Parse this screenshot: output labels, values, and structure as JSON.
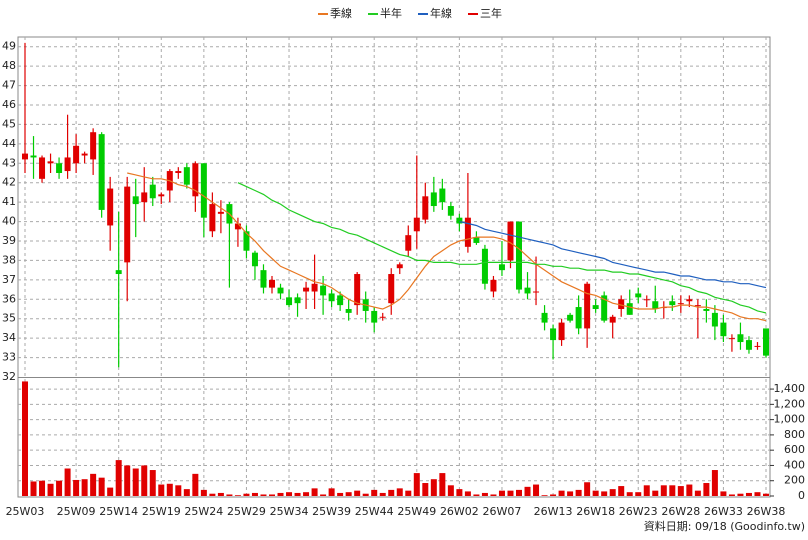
{
  "chart_data": {
    "type": "candlestick",
    "categories": [
      "25W03",
      null,
      null,
      null,
      null,
      null,
      "25W09",
      null,
      null,
      null,
      null,
      "25W14",
      null,
      null,
      null,
      null,
      "25W19",
      null,
      null,
      null,
      null,
      "25W24",
      null,
      null,
      null,
      null,
      "25W29",
      null,
      null,
      null,
      null,
      "25W34",
      null,
      null,
      null,
      null,
      "25W39",
      null,
      null,
      null,
      null,
      "25W44",
      null,
      null,
      null,
      null,
      "25W49",
      null,
      null,
      null,
      null,
      "26W02",
      null,
      null,
      null,
      null,
      "26W07",
      null,
      null,
      null,
      null,
      null,
      "26W13",
      null,
      null,
      null,
      null,
      "26W18",
      null,
      null,
      null,
      null,
      "26W23",
      null,
      null,
      null,
      null,
      "26W28",
      null,
      null,
      null,
      null,
      "26W33",
      null,
      null,
      null,
      null,
      "26W38"
    ],
    "open": [
      43.2,
      43.4,
      42.2,
      43,
      43,
      42.6,
      43,
      43.4,
      43.2,
      44.5,
      39.8,
      37.5,
      37.9,
      41.3,
      41,
      41.9,
      41.3,
      41.6,
      42.5,
      42.8,
      41.3,
      43,
      39.5,
      40.4,
      40.9,
      39.6,
      39.5,
      38.4,
      37.5,
      36.6,
      36.6,
      36.1,
      36.1,
      36.4,
      36.4,
      36.7,
      36.3,
      36.2,
      35.5,
      35.7,
      36,
      35.4,
      35.1,
      35.8,
      37.6,
      38.5,
      39.5,
      40.1,
      41.5,
      41.7,
      40.8,
      40.2,
      38.7,
      39.2,
      38.6,
      36.4,
      37.8,
      38,
      40,
      36.6,
      36.4,
      35.3,
      34.5,
      33.9,
      35.2,
      35.6,
      34.5,
      35.7,
      36.2,
      34.8,
      35.5,
      35.8,
      36.3,
      36,
      35.9,
      35.6,
      35.9,
      35.8,
      35.9,
      35.7,
      35.5,
      35.3,
      34.8,
      34,
      34.2,
      33.9,
      33.6,
      34.5
    ],
    "high": [
      49.2,
      44.4,
      43.4,
      43.5,
      43.3,
      45.5,
      44.5,
      43.6,
      44.8,
      44.6,
      42.3,
      40.5,
      42.3,
      42.2,
      42.8,
      42.3,
      41.5,
      42.7,
      42.8,
      43.0,
      43.1,
      43.0,
      41.5,
      41.1,
      41.0,
      40.2,
      39.8,
      38.5,
      37.8,
      37.2,
      36.8,
      36.5,
      36.3,
      36.9,
      38.3,
      37.2,
      36.5,
      36.4,
      36.0,
      37.4,
      36.4,
      35.6,
      35.3,
      37.6,
      37.9,
      39.8,
      43.4,
      42.0,
      42.3,
      42.2,
      41.0,
      40.4,
      42.5,
      39.5,
      38.8,
      37.2,
      39.0,
      40.0,
      40.0,
      37.4,
      38.2,
      35.7,
      34.7,
      35.0,
      35.3,
      36.2,
      36.9,
      36.0,
      36.4,
      35.2,
      36.2,
      36.5,
      36.6,
      36.2,
      36.7,
      35.9,
      36.2,
      36.2,
      36.2,
      36.0,
      36.0,
      35.7,
      35.2,
      34.2,
      34.8,
      34.1,
      33.8,
      34.5
    ],
    "low": [
      42.5,
      42.2,
      42.0,
      42.5,
      42.2,
      42.2,
      42.5,
      43.0,
      42.4,
      40.2,
      38.5,
      32.5,
      35.9,
      39.2,
      40.0,
      40.8,
      40.9,
      41.0,
      42.2,
      41.7,
      40.5,
      39.2,
      39.2,
      39.4,
      36.6,
      38.7,
      38.1,
      37.0,
      36.3,
      36.3,
      36.0,
      35.6,
      35.1,
      35.5,
      35.5,
      35.2,
      35.6,
      35.4,
      34.9,
      35.2,
      34.8,
      34.3,
      34.9,
      35.2,
      37.3,
      38.2,
      38.6,
      39.9,
      40.5,
      40.6,
      40.1,
      39.5,
      38.4,
      38.8,
      36.5,
      36.1,
      37.2,
      37.6,
      36.3,
      36.0,
      35.7,
      34.4,
      32.9,
      33.6,
      34.8,
      34.2,
      33.5,
      35.3,
      34.8,
      34.0,
      35.1,
      35.2,
      35.8,
      35.6,
      35.3,
      35.0,
      35.4,
      35.3,
      35.6,
      34.0,
      34.8,
      33.9,
      33.8,
      33.3,
      33.4,
      33.2,
      33.4,
      33.0
    ],
    "close": [
      43.5,
      43.3,
      43.3,
      43.1,
      42.5,
      43.3,
      43.9,
      43.5,
      44.6,
      40.6,
      41.7,
      37.3,
      41.8,
      40.9,
      41.5,
      41.2,
      41.4,
      42.6,
      42.6,
      41.9,
      43.0,
      40.2,
      40.9,
      40.5,
      39.9,
      39.9,
      38.5,
      37.7,
      36.6,
      37.0,
      36.3,
      35.7,
      35.8,
      36.6,
      36.8,
      36.2,
      35.9,
      35.7,
      35.3,
      37.3,
      35.4,
      34.8,
      35.1,
      37.3,
      37.8,
      39.3,
      40.2,
      41.3,
      40.8,
      41.0,
      40.3,
      39.9,
      40.2,
      38.9,
      36.8,
      37.0,
      37.5,
      40.0,
      36.5,
      36.3,
      36.4,
      34.8,
      33.9,
      34.8,
      34.9,
      34.5,
      36.8,
      35.5,
      34.9,
      35.1,
      36.0,
      35.2,
      36.1,
      36.0,
      35.5,
      35.6,
      35.7,
      35.8,
      36.0,
      35.7,
      35.4,
      34.6,
      34.1,
      34.0,
      33.8,
      33.4,
      33.6,
      33.1
    ],
    "volume": [
      1500,
      190,
      200,
      160,
      200,
      360,
      210,
      220,
      290,
      240,
      110,
      470,
      400,
      360,
      400,
      340,
      150,
      160,
      140,
      90,
      290,
      80,
      30,
      40,
      20,
      10,
      30,
      40,
      20,
      20,
      40,
      50,
      40,
      50,
      100,
      20,
      100,
      40,
      50,
      70,
      30,
      80,
      40,
      80,
      100,
      70,
      300,
      170,
      220,
      300,
      140,
      90,
      60,
      20,
      40,
      20,
      70,
      70,
      80,
      120,
      150,
      10,
      20,
      70,
      60,
      80,
      180,
      70,
      60,
      90,
      130,
      50,
      50,
      140,
      70,
      140,
      140,
      130,
      150,
      70,
      170,
      340,
      60,
      20,
      30,
      40,
      50,
      30
    ],
    "up_color": "#e00000",
    "down_color": "#00cc00",
    "volume_color": "#e00000",
    "series": [
      {
        "name": "季線",
        "color": "#e87722",
        "values": [
          null,
          null,
          null,
          null,
          null,
          null,
          null,
          null,
          null,
          null,
          null,
          null,
          42.5,
          42.4,
          42.3,
          42.2,
          42.2,
          42.1,
          41.9,
          41.8,
          41.6,
          41.3,
          41.0,
          40.7,
          40.4,
          39.9,
          39.4,
          39.0,
          38.5,
          38.1,
          37.7,
          37.5,
          37.3,
          37.1,
          36.9,
          36.8,
          36.6,
          36.3,
          36.0,
          35.8,
          35.7,
          35.6,
          35.5,
          35.7,
          36.0,
          36.5,
          37.1,
          37.7,
          38.2,
          38.5,
          38.8,
          39.0,
          39.1,
          39.2,
          39.2,
          39.2,
          39.1,
          38.9,
          38.6,
          38.2,
          37.8,
          37.5,
          37.2,
          36.9,
          36.7,
          36.5,
          36.3,
          36.2,
          36.0,
          35.8,
          35.7,
          35.6,
          35.5,
          35.5,
          35.5,
          35.6,
          35.6,
          35.7,
          35.7,
          35.6,
          35.6,
          35.5,
          35.4,
          35.3,
          35.1,
          35.0,
          35.0,
          34.9
        ]
      },
      {
        "name": "半年",
        "color": "#22cc22",
        "values": [
          null,
          null,
          null,
          null,
          null,
          null,
          null,
          null,
          null,
          null,
          null,
          null,
          null,
          null,
          null,
          null,
          null,
          null,
          null,
          null,
          null,
          null,
          null,
          null,
          null,
          42.0,
          41.8,
          41.6,
          41.4,
          41.1,
          40.9,
          40.6,
          40.4,
          40.2,
          40.0,
          39.9,
          39.7,
          39.6,
          39.4,
          39.3,
          39.1,
          38.9,
          38.7,
          38.5,
          38.3,
          38.2,
          38.0,
          38.0,
          37.9,
          37.9,
          37.9,
          37.8,
          37.8,
          37.8,
          37.9,
          37.9,
          37.9,
          37.9,
          37.9,
          37.9,
          37.8,
          37.8,
          37.7,
          37.7,
          37.6,
          37.6,
          37.5,
          37.5,
          37.5,
          37.4,
          37.4,
          37.3,
          37.3,
          37.2,
          37.1,
          37.0,
          36.9,
          36.7,
          36.6,
          36.4,
          36.3,
          36.1,
          36.0,
          35.9,
          35.7,
          35.6,
          35.4,
          35.3
        ]
      },
      {
        "name": "年線",
        "color": "#1f5fbf",
        "values": [
          null,
          null,
          null,
          null,
          null,
          null,
          null,
          null,
          null,
          null,
          null,
          null,
          null,
          null,
          null,
          null,
          null,
          null,
          null,
          null,
          null,
          null,
          null,
          null,
          null,
          null,
          null,
          null,
          null,
          null,
          null,
          null,
          null,
          null,
          null,
          null,
          null,
          null,
          null,
          null,
          null,
          null,
          null,
          null,
          null,
          null,
          null,
          null,
          null,
          null,
          null,
          40.0,
          39.9,
          39.8,
          39.6,
          39.5,
          39.4,
          39.3,
          39.2,
          39.1,
          39.0,
          38.9,
          38.8,
          38.6,
          38.5,
          38.4,
          38.3,
          38.2,
          38.1,
          37.9,
          37.8,
          37.7,
          37.6,
          37.5,
          37.4,
          37.4,
          37.3,
          37.2,
          37.2,
          37.1,
          37.0,
          37.0,
          36.9,
          36.9,
          36.8,
          36.8,
          36.7,
          36.6
        ]
      },
      {
        "name": "三年",
        "color": "#e00000",
        "values": [
          null,
          null,
          null,
          null,
          null,
          null,
          null,
          null,
          null,
          null,
          null,
          null,
          null,
          null,
          null,
          null,
          null,
          null,
          null,
          null,
          null,
          null,
          null,
          null,
          null,
          null,
          null,
          null,
          null,
          null,
          null,
          null,
          null,
          null,
          null,
          null,
          null,
          null,
          null,
          null,
          null,
          null,
          null,
          null,
          null,
          null,
          null,
          null,
          null,
          null,
          null,
          null,
          null,
          null,
          null,
          null,
          null,
          null,
          null,
          null,
          null,
          null,
          null,
          null,
          null,
          null,
          null,
          null,
          null,
          null,
          null,
          null,
          null,
          null,
          null,
          null,
          null,
          null,
          null,
          null,
          null,
          null,
          null,
          null,
          null,
          null,
          null,
          null
        ]
      }
    ],
    "ylim": [
      32,
      49.5
    ],
    "yticks": [
      32,
      33,
      34,
      35,
      36,
      37,
      38,
      39,
      40,
      41,
      42,
      43,
      44,
      45,
      46,
      47,
      48,
      49
    ],
    "y2lim": [
      0,
      1545
    ],
    "y2ticks": [
      0,
      200,
      400,
      600,
      800,
      {
        "value": 1000,
        "label": "1,000"
      },
      {
        "value": 1200,
        "label": "1,200"
      },
      {
        "value": 1400,
        "label": "1,400"
      }
    ],
    "grid": true,
    "legend": "top",
    "footnote": "資料日期: 09/18  (Goodinfo.tw)"
  }
}
